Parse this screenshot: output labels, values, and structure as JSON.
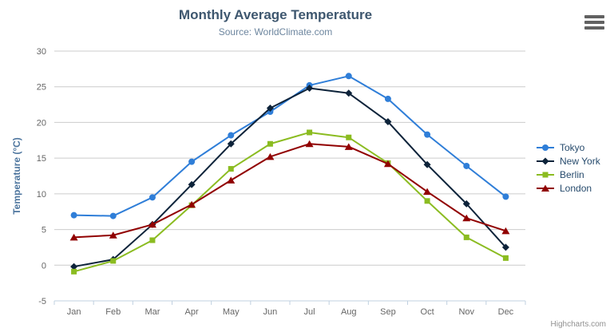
{
  "chart_data": {
    "type": "line",
    "title": "Monthly Average Temperature",
    "subtitle": "Source: WorldClimate.com",
    "categories": [
      "Jan",
      "Feb",
      "Mar",
      "Apr",
      "May",
      "Jun",
      "Jul",
      "Aug",
      "Sep",
      "Oct",
      "Nov",
      "Dec"
    ],
    "series": [
      {
        "name": "Tokyo",
        "color": "#2f7ed8",
        "marker": "circle",
        "values": [
          7.0,
          6.9,
          9.5,
          14.5,
          18.2,
          21.5,
          25.2,
          26.5,
          23.3,
          18.3,
          13.9,
          9.6
        ]
      },
      {
        "name": "New York",
        "color": "#0d233a",
        "marker": "diamond",
        "values": [
          -0.2,
          0.8,
          5.7,
          11.3,
          17.0,
          22.0,
          24.8,
          24.1,
          20.1,
          14.1,
          8.6,
          2.5
        ]
      },
      {
        "name": "Berlin",
        "color": "#8bbc21",
        "marker": "square",
        "values": [
          -0.9,
          0.6,
          3.5,
          8.4,
          13.5,
          17.0,
          18.6,
          17.9,
          14.3,
          9.0,
          3.9,
          1.0
        ]
      },
      {
        "name": "London",
        "color": "#910000",
        "marker": "triangle",
        "values": [
          3.9,
          4.2,
          5.7,
          8.5,
          11.9,
          15.2,
          17.0,
          16.6,
          14.2,
          10.3,
          6.6,
          4.8
        ]
      }
    ],
    "xlabel": "",
    "ylabel": "Temperature (°C)",
    "ylim": [
      -5,
      30
    ],
    "y_ticks": [
      -5,
      0,
      5,
      10,
      15,
      20,
      25,
      30
    ],
    "grid": true,
    "legend_position": "right",
    "styles": {
      "grid_color": "#CCCCCC",
      "axis_line_color": "#C0D0E0",
      "tick_label_color": "#666666",
      "title_color": "#3E576F",
      "subtitle_color": "#6D869F",
      "axis_title_color": "#4d759e",
      "legend_text_color": "#274b6d"
    }
  },
  "credits": {
    "label": "Highcharts.com"
  },
  "context_menu": {
    "icon": "hamburger-menu-icon"
  }
}
